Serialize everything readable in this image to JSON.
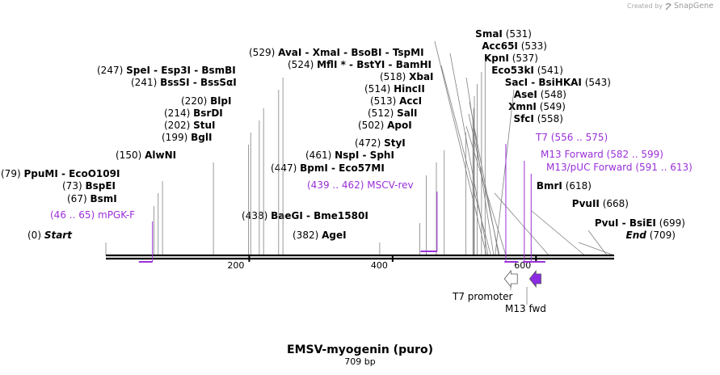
{
  "credit": {
    "prefix": "Created by",
    "brand": "SnapGene"
  },
  "plasmid": {
    "name": "EMSV-myogenin (puro)",
    "length_label": "709 bp",
    "length": 709
  },
  "colors": {
    "enzyme": "#000000",
    "primer": "#9b30d9",
    "feature_outline": "#555555",
    "line": "#808080"
  },
  "ruler": {
    "ticks": [
      "200",
      "400",
      "600"
    ]
  },
  "sites": [
    {
      "pos": "(0)",
      "names": [
        "Start"
      ],
      "bp": 0
    },
    {
      "pos": "(382)",
      "names": [
        "AgeI"
      ],
      "bp": 382
    },
    {
      "pos": "(438)",
      "names": [
        "BaeGI",
        "Bme1580I"
      ],
      "bp": 438
    },
    {
      "pos": "(709)",
      "names": [
        "End"
      ],
      "bp": 709
    },
    {
      "pos": "(699)",
      "names": [
        "PvuI",
        "BsiEI"
      ],
      "bp": 699
    },
    {
      "pos": "(67)",
      "names": [
        "BsmI"
      ],
      "bp": 67
    },
    {
      "pos": "(668)",
      "names": [
        "PvuII"
      ],
      "bp": 668
    },
    {
      "pos": "(73)",
      "names": [
        "BspEI"
      ],
      "bp": 73
    },
    {
      "pos": "(618)",
      "names": [
        "BmrI"
      ],
      "bp": 618
    },
    {
      "pos": "(79)",
      "names": [
        "PpuMI",
        "EcoO109I"
      ],
      "bp": 79
    },
    {
      "pos": "(447)",
      "names": [
        "BpmI",
        "Eco57MI"
      ],
      "bp": 447
    },
    {
      "pos": "(150)",
      "names": [
        "AlwNI"
      ],
      "bp": 150
    },
    {
      "pos": "(461)",
      "names": [
        "NspI",
        "SphI"
      ],
      "bp": 461
    },
    {
      "pos": "(472)",
      "names": [
        "StyI"
      ],
      "bp": 472
    },
    {
      "pos": "(199)",
      "names": [
        "BglI"
      ],
      "bp": 199
    },
    {
      "pos": "(202)",
      "names": [
        "StuI"
      ],
      "bp": 202
    },
    {
      "pos": "(502)",
      "names": [
        "ApoI"
      ],
      "bp": 502
    },
    {
      "pos": "(558)",
      "names": [
        "SfcI"
      ],
      "bp": 558
    },
    {
      "pos": "(214)",
      "names": [
        "BsrDI"
      ],
      "bp": 214
    },
    {
      "pos": "(512)",
      "names": [
        "SalI"
      ],
      "bp": 512
    },
    {
      "pos": "(549)",
      "names": [
        "XmnI"
      ],
      "bp": 549
    },
    {
      "pos": "(220)",
      "names": [
        "BlpI"
      ],
      "bp": 220
    },
    {
      "pos": "(513)",
      "names": [
        "AccI"
      ],
      "bp": 513
    },
    {
      "pos": "(548)",
      "names": [
        "AseI"
      ],
      "bp": 548
    },
    {
      "pos": "(514)",
      "names": [
        "HincII"
      ],
      "bp": 514
    },
    {
      "pos": "(543)",
      "names": [
        "SacI",
        "BsiHKAI"
      ],
      "bp": 543
    },
    {
      "pos": "(518)",
      "names": [
        "XbaI"
      ],
      "bp": 518
    },
    {
      "pos": "(541)",
      "names": [
        "Eco53kI"
      ],
      "bp": 541
    },
    {
      "pos": "(241)",
      "names": [
        "BssSI",
        "BssSαI"
      ],
      "bp": 241
    },
    {
      "pos": "(524)",
      "names": [
        "MflI *",
        "BstYI",
        "BamHI"
      ],
      "bp": 524
    },
    {
      "pos": "(537)",
      "names": [
        "KpnI"
      ],
      "bp": 537
    },
    {
      "pos": "(247)",
      "names": [
        "SpeI",
        "Esp3I",
        "BsmBI"
      ],
      "bp": 247
    },
    {
      "pos": "(533)",
      "names": [
        "Acc65I"
      ],
      "bp": 533
    },
    {
      "pos": "(529)",
      "names": [
        "AvaI",
        "XmaI",
        "BsoBI",
        "TspMI"
      ],
      "bp": 529
    },
    {
      "pos": "(531)",
      "names": [
        "SmaI"
      ],
      "bp": 531
    }
  ],
  "primers": [
    {
      "name": "mPGK-F",
      "range": "(46 .. 65)",
      "start": 46,
      "end": 65
    },
    {
      "name": "MSCV-rev",
      "range": "(439 .. 462)",
      "start": 439,
      "end": 462
    },
    {
      "name": "T7",
      "range": "(556 .. 575)",
      "start": 556,
      "end": 575
    },
    {
      "name": "M13 Forward",
      "range": "(582 .. 599)",
      "start": 582,
      "end": 599
    },
    {
      "name": "M13/pUC Forward",
      "range": "(591 .. 613)",
      "start": 591,
      "end": 613
    }
  ],
  "features": [
    {
      "name": "T7 promoter",
      "start": 556,
      "end": 574,
      "direction": "reverse",
      "fill": "#ffffff"
    },
    {
      "name": "M13 fwd",
      "start": 591,
      "end": 607,
      "direction": "reverse",
      "fill": "#8a2be2"
    }
  ]
}
